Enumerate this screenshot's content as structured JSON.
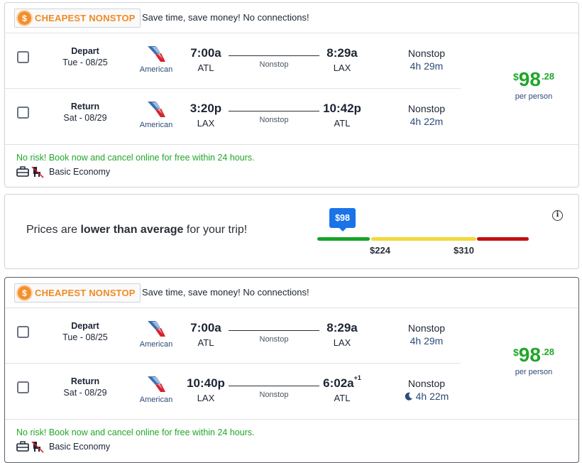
{
  "offers": [
    {
      "badge": "CHEAPEST NONSTOP",
      "banner_message": "Save time, save money! No connections!",
      "legs": [
        {
          "direction": "Depart",
          "date": "Tue - 08/25",
          "airline": "American",
          "dep_time": "7:00a",
          "dep_code": "ATL",
          "arr_time": "8:29a",
          "arr_plus": "",
          "arr_code": "LAX",
          "mid_label": "Nonstop",
          "stops": "Nonstop",
          "duration": "4h 29m"
        },
        {
          "direction": "Return",
          "date": "Sat - 08/29",
          "airline": "American",
          "dep_time": "3:20p",
          "dep_code": "LAX",
          "arr_time": "10:42p",
          "arr_plus": "",
          "arr_code": "ATL",
          "mid_label": "Nonstop",
          "stops": "Nonstop",
          "duration": "4h 22m"
        }
      ],
      "price": {
        "currency": "$",
        "dollars": "98",
        "cents": ".28",
        "per": "per person"
      },
      "no_risk": "No risk! Book now and cancel online for free within 24 hours.",
      "cabin": "Basic Economy"
    },
    {
      "badge": "CHEAPEST NONSTOP",
      "banner_message": "Save time, save money! No connections!",
      "legs": [
        {
          "direction": "Depart",
          "date": "Tue - 08/25",
          "airline": "American",
          "dep_time": "7:00a",
          "dep_code": "ATL",
          "arr_time": "8:29a",
          "arr_plus": "",
          "arr_code": "LAX",
          "mid_label": "Nonstop",
          "stops": "Nonstop",
          "duration": "4h 29m"
        },
        {
          "direction": "Return",
          "date": "Sat - 08/29",
          "airline": "American",
          "dep_time": "10:40p",
          "dep_code": "LAX",
          "arr_time": "6:02a",
          "arr_plus": "+1",
          "arr_code": "ATL",
          "mid_label": "Nonstop",
          "stops": "Nonstop",
          "duration": "4h 22m"
        }
      ],
      "price": {
        "currency": "$",
        "dollars": "98",
        "cents": ".28",
        "per": "per person"
      },
      "no_risk": "No risk! Book now and cancel online for free within 24 hours.",
      "cabin": "Basic Economy"
    }
  ],
  "price_insight": {
    "prefix": "Prices are ",
    "emphasis": "lower than average",
    "suffix": " for your trip!",
    "current_tag": "$98",
    "ticks": [
      "$224",
      "$310"
    ],
    "colors": {
      "low": "#16a326",
      "mid": "#f2d93a",
      "high": "#c21010",
      "tag": "#1a73e8"
    },
    "info_icon": "info-icon"
  },
  "colors": {
    "accent_orange": "#f08a24",
    "price_green": "#21a62a",
    "link_blue": "#2d4a7a"
  }
}
